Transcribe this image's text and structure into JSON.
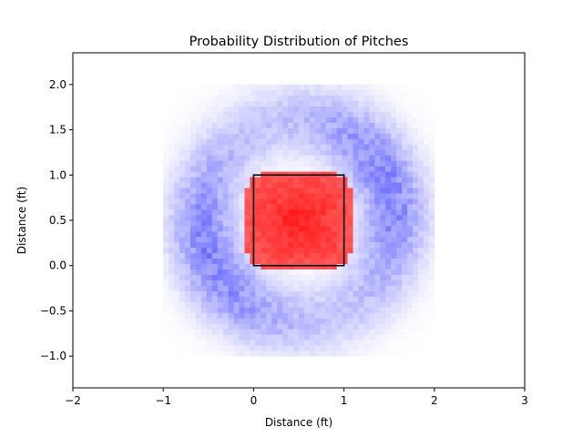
{
  "chart_data": {
    "type": "heatmap",
    "title": "Probability Distribution of Pitches",
    "xlabel": "Distance (ft)",
    "ylabel": "Distance (ft)",
    "xlim": [
      -2,
      3
    ],
    "ylim": [
      -1.35,
      2.35
    ],
    "xticks": [
      -2,
      -1,
      0,
      1,
      2,
      3
    ],
    "xtick_labels": [
      "−2",
      "−1",
      "0",
      "1",
      "2",
      "3"
    ],
    "yticks": [
      -1.0,
      -0.5,
      0.0,
      0.5,
      1.0,
      1.5,
      2.0
    ],
    "ytick_labels": [
      "−1.0",
      "−0.5",
      "0.0",
      "0.5",
      "1.0",
      "1.5",
      "2.0"
    ],
    "grid": false,
    "heatmap": {
      "x_range": [
        -1,
        2
      ],
      "y_range": [
        -1,
        2
      ],
      "cells_per_axis": 50,
      "colormap": "bwr",
      "positive_color": "#ff0000",
      "negative_color": "#0000ff",
      "zero_color": "#ffffff",
      "value_range": [
        -1,
        1
      ],
      "positive_region": {
        "center": [
          0.5,
          0.5
        ],
        "half_size": [
          0.6,
          0.55
        ],
        "peak": 0.95
      },
      "negative_ring": {
        "center": [
          0.5,
          0.5
        ],
        "radius": 1.05,
        "width": 0.38,
        "peak": -0.35
      }
    },
    "strike_zone": {
      "x": [
        0,
        1
      ],
      "y": [
        0,
        1
      ],
      "color": "#000000"
    }
  }
}
